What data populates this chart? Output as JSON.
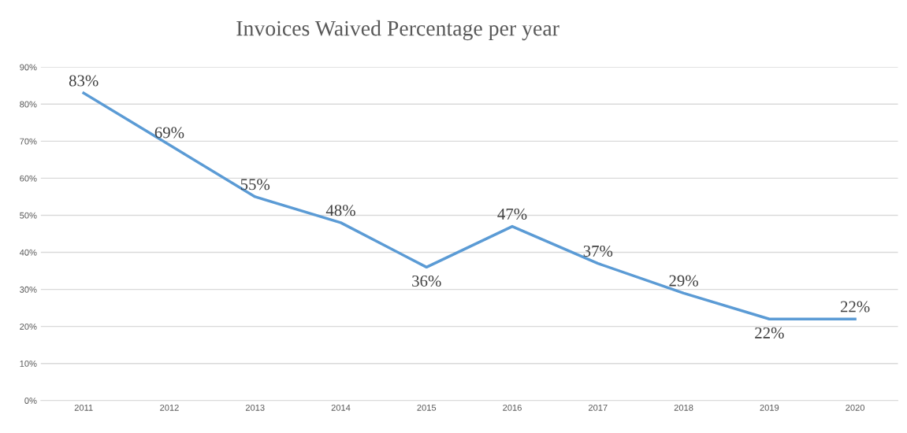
{
  "chart_data": {
    "type": "line",
    "title": "Invoices Waived Percentage per year",
    "categories": [
      "2011",
      "2012",
      "2013",
      "2014",
      "2015",
      "2016",
      "2017",
      "2018",
      "2019",
      "2020"
    ],
    "series": [
      {
        "color": "#5b9bd5",
        "values": [
          83,
          69,
          55,
          48,
          36,
          47,
          37,
          29,
          22,
          22
        ],
        "value_labels": [
          "83%",
          "69%",
          "55%",
          "48%",
          "36%",
          "47%",
          "37%",
          "29%",
          "22%",
          "22%"
        ]
      }
    ],
    "ylim": [
      0,
      90
    ],
    "yticks": [
      {
        "value": 0,
        "label": "0%"
      },
      {
        "value": 10,
        "label": "10%"
      },
      {
        "value": 20,
        "label": "20%"
      },
      {
        "value": 30,
        "label": "30%"
      },
      {
        "value": 40,
        "label": "40%"
      },
      {
        "value": 50,
        "label": "50%"
      },
      {
        "value": 60,
        "label": "60%"
      },
      {
        "value": 70,
        "label": "70%"
      },
      {
        "value": 80,
        "label": "80%"
      },
      {
        "value": 90,
        "label": "90%"
      }
    ],
    "grid": "y",
    "line_style": "solid",
    "marker": "none"
  }
}
